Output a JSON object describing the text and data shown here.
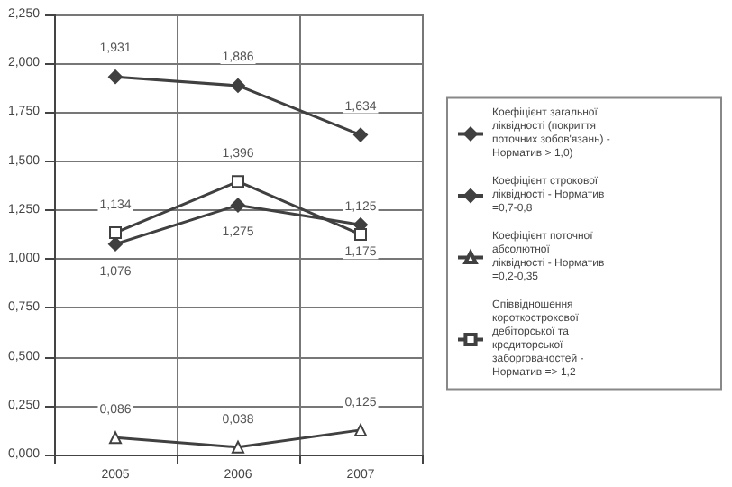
{
  "chart_data": {
    "type": "line",
    "categories": [
      "2005",
      "2006",
      "2007"
    ],
    "series": [
      {
        "name": "Коефіцієнт загальної ліквідності (покриття поточних зобов'язань) - Норматив > 1,0)",
        "color": "#404040",
        "marker": "diamond",
        "values": [
          1.931,
          1.886,
          1.634
        ],
        "value_labels": [
          "1,931",
          "1,886",
          "1,634"
        ]
      },
      {
        "name": "Коефіцієнт строкової ліквідності - Норматив =0,7-0,8",
        "color": "#404040",
        "marker": "diamond",
        "values": [
          1.076,
          1.275,
          1.175
        ],
        "value_labels": [
          "1,076",
          "1,275",
          "1,175"
        ]
      },
      {
        "name": "Коефіцієнт поточної абсолютної ліквідності - Норматив =0,2-0,35",
        "color": "#404040",
        "marker": "triangle",
        "values": [
          0.086,
          0.038,
          0.125
        ],
        "value_labels": [
          "0,086",
          "0,038",
          "0,125"
        ]
      },
      {
        "name": "Співвідношення короткострокової дебіторської та кредиторської заборгованостей - Норматив => 1,2",
        "color": "#404040",
        "marker": "square",
        "values": [
          1.134,
          1.396,
          1.125
        ],
        "value_labels": [
          "1,134",
          "1,396",
          "1,125"
        ]
      }
    ],
    "ylim": [
      0,
      2.25
    ],
    "yticks": [
      {
        "value": 0,
        "label": "0,000"
      },
      {
        "value": 0.25,
        "label": "0,250"
      },
      {
        "value": 0.5,
        "label": "0,500"
      },
      {
        "value": 0.75,
        "label": "0,750"
      },
      {
        "value": 1,
        "label": "1,000"
      },
      {
        "value": 1.25,
        "label": "1,250"
      },
      {
        "value": 1.5,
        "label": "1,500"
      },
      {
        "value": 1.75,
        "label": "1,750"
      },
      {
        "value": 2,
        "label": "2,000"
      },
      {
        "value": 2.25,
        "label": "2,250"
      }
    ],
    "grid": true,
    "legend": "right",
    "line_style": "solid"
  }
}
